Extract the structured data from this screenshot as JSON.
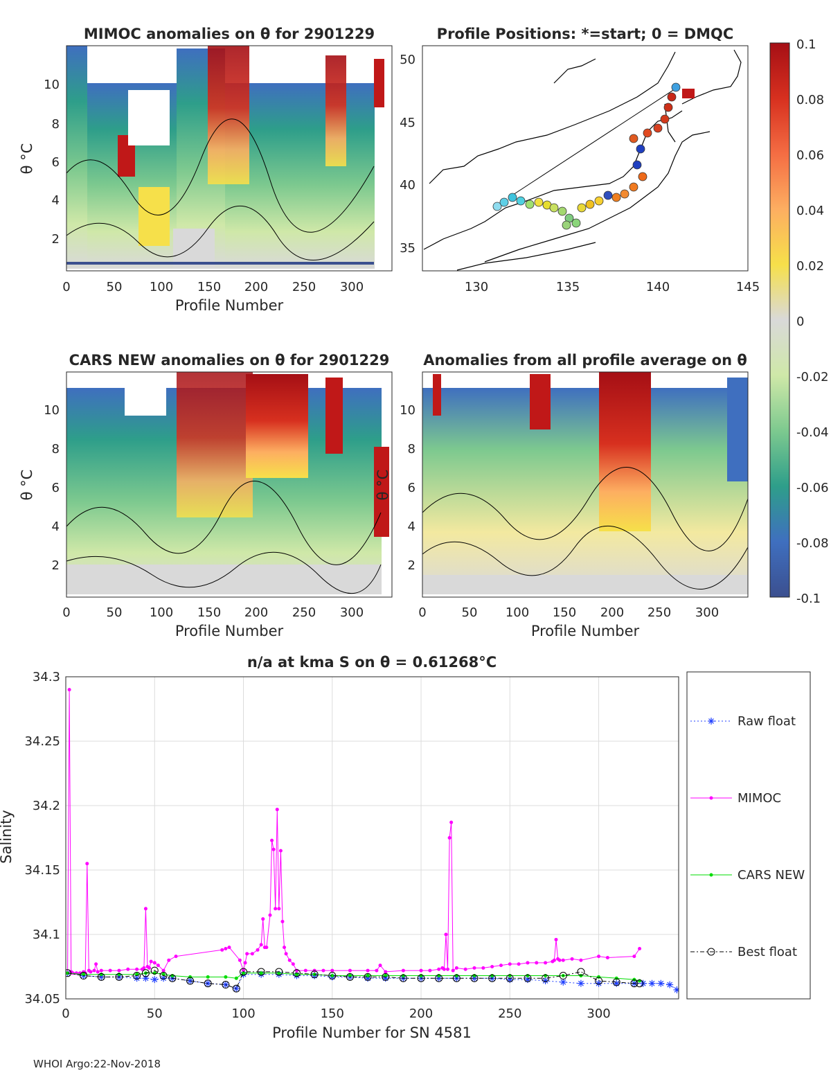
{
  "panels": {
    "mimoc": {
      "title": "MIMOC anomalies on θ  for 2901229",
      "ylabel": "θ °C",
      "xlabel": "Profile Number",
      "xticks": [
        "0",
        "50",
        "100",
        "150",
        "200",
        "250",
        "300"
      ],
      "yticks": [
        "2",
        "4",
        "6",
        "8",
        "10"
      ]
    },
    "positions": {
      "title": "Profile Positions: *=start; 0 = DMQC",
      "xticks": [
        "130",
        "135",
        "140",
        "145"
      ],
      "yticks": [
        "35",
        "40",
        "45",
        "50"
      ]
    },
    "cars": {
      "title": "CARS NEW anomalies on θ for 2901229",
      "ylabel": "θ °C",
      "xlabel": "Profile Number",
      "xticks": [
        "0",
        "50",
        "100",
        "150",
        "200",
        "250",
        "300"
      ],
      "yticks": [
        "2",
        "4",
        "6",
        "8",
        "10"
      ]
    },
    "avg": {
      "title": "Anomalies from all profile average on θ",
      "ylabel": "θ °C",
      "xlabel": "Profile Number",
      "xticks": [
        "0",
        "50",
        "100",
        "150",
        "200",
        "250",
        "300"
      ],
      "yticks": [
        "2",
        "4",
        "6",
        "8",
        "10"
      ]
    }
  },
  "colorbar": {
    "ticks": [
      "0.1",
      "0.08",
      "0.06",
      "0.04",
      "0.02",
      "0",
      "-0.02",
      "-0.04",
      "-0.06",
      "-0.08",
      "-0.1"
    ],
    "stops": [
      "#a50f15",
      "#d7301f",
      "#f46d43",
      "#fdae61",
      "#f6e04a",
      "#d9d9d9",
      "#cfe8a8",
      "#7dc98f",
      "#2e9e8a",
      "#3f6fbf",
      "#3b4f8f"
    ]
  },
  "colors": {
    "raw": "#1f3fff",
    "mimoc": "#ff00ff",
    "cars": "#00dd00",
    "best": "#000000",
    "grid": "#dcdcdc"
  },
  "chart_data": {
    "type": "line",
    "title": "n/a at kma S on θ = 0.61268°C",
    "xlabel": "Profile Number for SN 4581",
    "ylabel": "Salinity",
    "xlim": [
      0,
      345
    ],
    "ylim": [
      34.05,
      34.3
    ],
    "xticks": [
      "0",
      "50",
      "100",
      "150",
      "200",
      "250",
      "300"
    ],
    "yticks": [
      "34.05",
      "34.1",
      "34.15",
      "34.2",
      "34.25",
      "34.3"
    ],
    "legend_position": "outside-right",
    "series": [
      {
        "name": "Raw float",
        "x": [
          1,
          10,
          20,
          30,
          40,
          45,
          50,
          55,
          60,
          70,
          80,
          90,
          96,
          100,
          110,
          120,
          130,
          140,
          150,
          160,
          170,
          180,
          190,
          200,
          210,
          220,
          230,
          240,
          250,
          260,
          270,
          280,
          290,
          300,
          310,
          320,
          325,
          330,
          335,
          340,
          344
        ],
        "y": [
          34.07,
          34.068,
          34.067,
          34.067,
          34.066,
          34.066,
          34.065,
          34.066,
          34.066,
          34.064,
          34.062,
          34.061,
          34.058,
          34.069,
          34.069,
          34.069,
          34.068,
          34.068,
          34.067,
          34.067,
          34.066,
          34.066,
          34.066,
          34.066,
          34.066,
          34.066,
          34.066,
          34.066,
          34.065,
          34.065,
          34.064,
          34.063,
          34.062,
          34.062,
          34.062,
          34.062,
          34.062,
          34.062,
          34.062,
          34.061,
          34.057
        ]
      },
      {
        "name": "MIMOC",
        "x": [
          1,
          2,
          3,
          4,
          6,
          8,
          10,
          11,
          12,
          13,
          14,
          16,
          17,
          18,
          20,
          25,
          30,
          35,
          40,
          43,
          44,
          45,
          46,
          47,
          48,
          50,
          52,
          55,
          58,
          62,
          88,
          90,
          92,
          98,
          100,
          101,
          102,
          105,
          108,
          110,
          111,
          112,
          113,
          115,
          116,
          117,
          118,
          119,
          120,
          121,
          122,
          123,
          124,
          126,
          128,
          130,
          135,
          140,
          145,
          150,
          160,
          170,
          175,
          177,
          180,
          190,
          200,
          205,
          210,
          212,
          213,
          214,
          215,
          216,
          217,
          218,
          220,
          225,
          230,
          235,
          240,
          245,
          250,
          255,
          260,
          265,
          270,
          274,
          275,
          276,
          277,
          278,
          280,
          285,
          290,
          300,
          305,
          320,
          323
        ],
        "y": [
          34.07,
          34.29,
          34.071,
          34.07,
          34.07,
          34.07,
          34.071,
          34.07,
          34.155,
          34.072,
          34.071,
          34.072,
          34.077,
          34.071,
          34.072,
          34.072,
          34.072,
          34.073,
          34.073,
          34.073,
          34.074,
          34.12,
          34.075,
          34.074,
          34.079,
          34.078,
          34.076,
          34.072,
          34.08,
          34.083,
          34.088,
          34.089,
          34.09,
          34.08,
          34.072,
          34.078,
          34.085,
          34.085,
          34.088,
          34.092,
          34.112,
          34.09,
          34.09,
          34.115,
          34.173,
          34.166,
          34.12,
          34.197,
          34.12,
          34.165,
          34.11,
          34.09,
          34.085,
          34.08,
          34.077,
          34.072,
          34.072,
          34.072,
          34.072,
          34.072,
          34.072,
          34.072,
          34.072,
          34.076,
          34.071,
          34.072,
          34.072,
          34.072,
          34.073,
          34.074,
          34.073,
          34.1,
          34.073,
          34.175,
          34.187,
          34.072,
          34.074,
          34.073,
          34.074,
          34.074,
          34.075,
          34.076,
          34.077,
          34.077,
          34.078,
          34.078,
          34.078,
          34.079,
          34.08,
          34.096,
          34.081,
          34.08,
          34.08,
          34.081,
          34.08,
          34.083,
          34.082,
          34.083,
          34.089
        ]
      },
      {
        "name": "CARS NEW",
        "x": [
          1,
          10,
          20,
          30,
          40,
          45,
          50,
          55,
          60,
          70,
          80,
          90,
          96,
          100,
          110,
          120,
          130,
          140,
          150,
          160,
          170,
          180,
          190,
          200,
          210,
          220,
          230,
          240,
          250,
          260,
          270,
          280,
          290,
          300,
          310,
          320,
          323
        ],
        "y": [
          34.07,
          34.069,
          34.069,
          34.069,
          34.069,
          34.07,
          34.07,
          34.069,
          34.068,
          34.067,
          34.067,
          34.067,
          34.066,
          34.07,
          34.07,
          34.07,
          34.069,
          34.069,
          34.068,
          34.068,
          34.068,
          34.068,
          34.068,
          34.068,
          34.068,
          34.068,
          34.068,
          34.068,
          34.068,
          34.068,
          34.068,
          34.068,
          34.068,
          34.067,
          34.066,
          34.065,
          34.064
        ]
      },
      {
        "name": "Best float",
        "x": [
          1,
          10,
          20,
          30,
          40,
          45,
          50,
          55,
          60,
          70,
          80,
          90,
          96,
          100,
          110,
          120,
          130,
          140,
          150,
          160,
          170,
          180,
          190,
          200,
          210,
          220,
          230,
          240,
          250,
          260,
          270,
          280,
          290,
          300,
          310,
          320,
          323
        ],
        "y": [
          34.07,
          34.068,
          34.067,
          34.067,
          34.068,
          34.07,
          34.072,
          34.068,
          34.066,
          34.064,
          34.062,
          34.061,
          34.058,
          34.071,
          34.071,
          34.071,
          34.07,
          34.069,
          34.068,
          34.067,
          34.067,
          34.067,
          34.066,
          34.066,
          34.066,
          34.066,
          34.066,
          34.066,
          34.066,
          34.066,
          34.066,
          34.068,
          34.071,
          34.064,
          34.063,
          34.062,
          34.062
        ]
      }
    ]
  },
  "footer": {
    "stamp": "WHOI Argo:22-Nov-2018"
  }
}
